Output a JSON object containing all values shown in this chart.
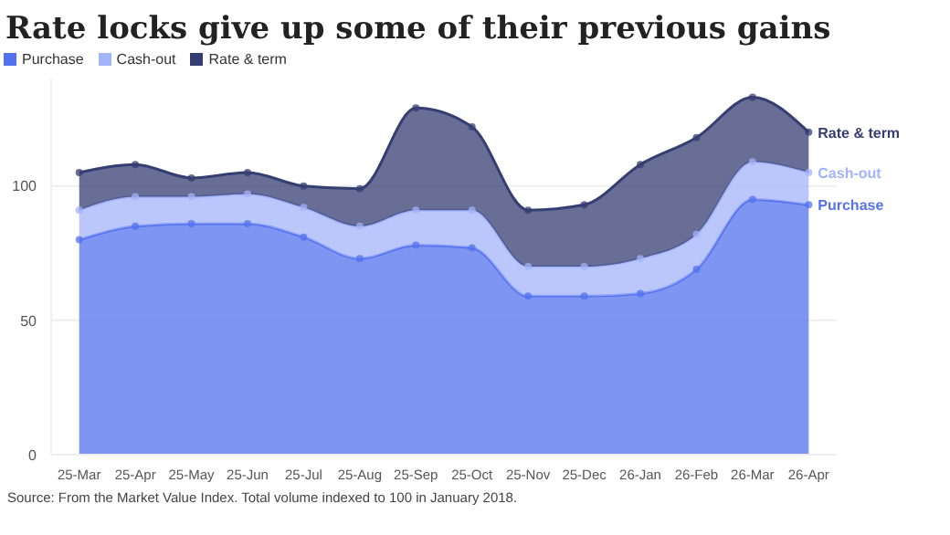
{
  "chart_data": {
    "type": "area",
    "title": "Rate locks give up some of their previous gains",
    "stacked": true,
    "categories": [
      "25-Mar",
      "25-Apr",
      "25-May",
      "25-Jun",
      "25-Jul",
      "25-Aug",
      "25-Sep",
      "25-Oct",
      "25-Nov",
      "25-Dec",
      "26-Jan",
      "26-Feb",
      "26-Mar",
      "26-Apr"
    ],
    "series": [
      {
        "name": "Purchase",
        "color": "#5472ee",
        "values": [
          80,
          85,
          86,
          86,
          81,
          73,
          78,
          77,
          59,
          59,
          60,
          69,
          95,
          93
        ]
      },
      {
        "name": "Cash-out",
        "color": "#a4b4f8",
        "values": [
          11,
          11,
          10,
          11,
          11,
          12,
          13,
          14,
          11,
          11,
          13,
          13,
          14,
          12
        ]
      },
      {
        "name": "Rate & term",
        "color": "#353e72",
        "values": [
          14,
          12,
          7,
          8,
          8,
          14,
          38,
          31,
          21,
          23,
          35,
          36,
          24,
          15
        ]
      }
    ],
    "ylim": [
      0,
      140
    ],
    "yticks": [
      0,
      50,
      100
    ],
    "grid": "y",
    "legend": "top left",
    "marker": "circle",
    "annotations": [
      "Source: From the Market Value Index. Total volume indexed to 100 in January 2018."
    ]
  }
}
